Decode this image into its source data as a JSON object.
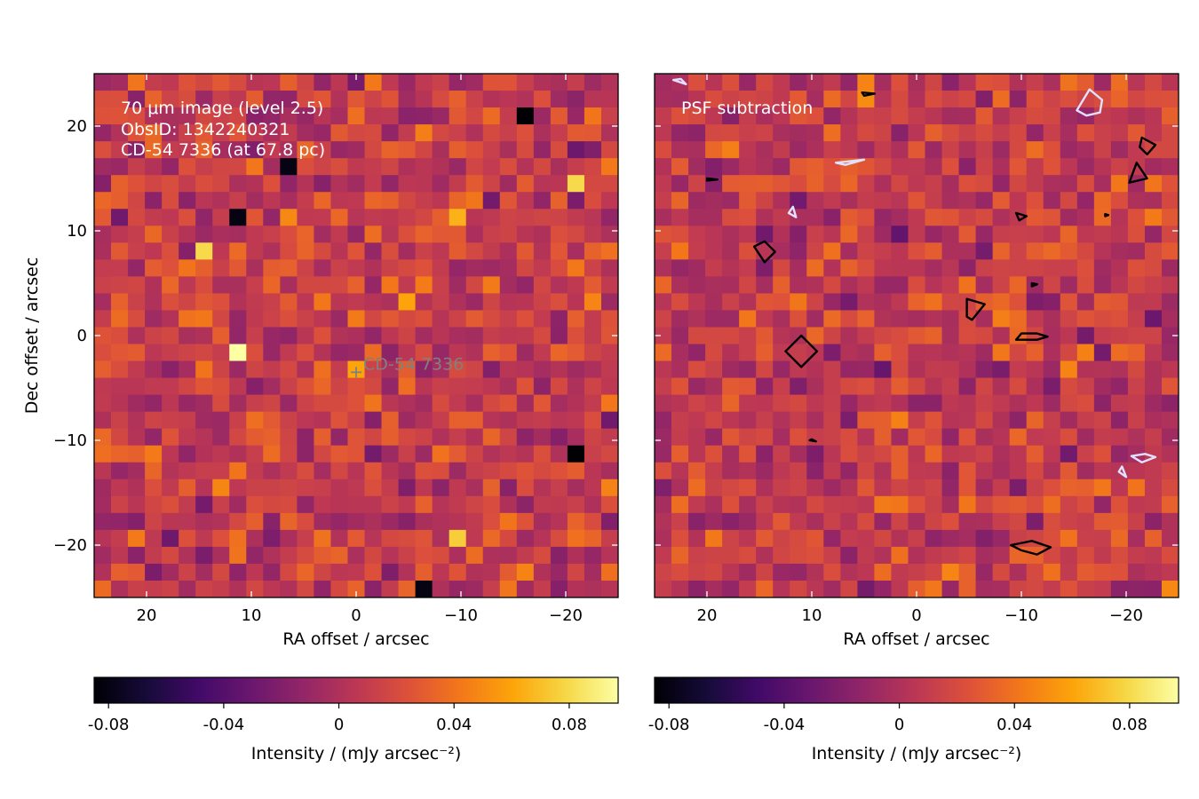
{
  "chart_data": [
    {
      "type": "heatmap",
      "panel": "left",
      "annotation_lines": [
        "70 μm image (level 2.5)",
        "ObsID: 1342240321",
        "CD-54 7336 (at 67.8 pc)"
      ],
      "xlabel": "RA offset / arcsec",
      "ylabel": "Dec offset / arcsec",
      "xlim": [
        25,
        -25
      ],
      "ylim": [
        -25,
        25
      ],
      "xticks": [
        20,
        10,
        0,
        -10,
        -20
      ],
      "xtick_labels": [
        "20",
        "10",
        "0",
        "−10",
        "−20"
      ],
      "yticks": [
        20,
        10,
        0,
        -10,
        -20
      ],
      "ytick_labels": [
        "20",
        "10",
        "0",
        "−10",
        "−20"
      ],
      "grid_size": [
        31,
        31
      ],
      "pixel_size_arcsec": 1.6,
      "target": {
        "label": "CD-54  7336",
        "x": 0,
        "y": -3.5,
        "marker": "+"
      },
      "colorbar": {
        "cmap": "inferno",
        "vmin": -0.085,
        "vmax": 0.097,
        "ticks": [
          -0.08,
          -0.04,
          0,
          0.04,
          0.08
        ],
        "tick_labels": [
          "-0.08",
          "-0.04",
          "0",
          "0.04",
          "0.08"
        ],
        "label": "Intensity / (mJy arcsec⁻²)"
      },
      "features": [
        {
          "x": 11,
          "y": -1.5,
          "value": 0.097
        },
        {
          "x": 14.5,
          "y": 8,
          "value": 0.08
        },
        {
          "x": 0,
          "y": -3.5,
          "value": 0.06
        },
        {
          "x": -5,
          "y": 2.5,
          "value": 0.06
        },
        {
          "x": -10,
          "y": 11.5,
          "value": 0.065
        },
        {
          "x": -21,
          "y": 15,
          "value": 0.08
        },
        {
          "x": -10,
          "y": -19.5,
          "value": 0.075
        },
        {
          "x": -16,
          "y": 21.5,
          "value": -0.085
        },
        {
          "x": -21,
          "y": -11,
          "value": -0.085
        },
        {
          "x": 11,
          "y": 11.5,
          "value": -0.08
        },
        {
          "x": 6,
          "y": 16,
          "value": -0.08
        },
        {
          "x": -6,
          "y": -24,
          "value": -0.08
        }
      ]
    },
    {
      "type": "heatmap",
      "panel": "right",
      "annotation_lines": [
        "PSF subtraction"
      ],
      "xlabel": "RA offset / arcsec",
      "ylabel": "",
      "xlim": [
        25,
        -25
      ],
      "ylim": [
        -25,
        25
      ],
      "xticks": [
        20,
        10,
        0,
        -10,
        -20
      ],
      "xtick_labels": [
        "20",
        "10",
        "0",
        "−10",
        "−20"
      ],
      "yticks": [
        20,
        10,
        0,
        -10,
        -20
      ],
      "ytick_labels": [],
      "grid_size": [
        31,
        31
      ],
      "pixel_size_arcsec": 1.6,
      "colorbar": {
        "cmap": "inferno",
        "vmin": -0.085,
        "vmax": 0.097,
        "ticks": [
          -0.08,
          -0.04,
          0,
          0.04,
          0.08
        ],
        "tick_labels": [
          "-0.08",
          "-0.04",
          "0",
          "0.04",
          "0.08"
        ],
        "label": "Intensity / (mJy arcsec⁻²)"
      },
      "contours": [
        {
          "color": "#000000",
          "points": [
            [
              12.5,
              -1.5
            ],
            [
              11,
              0
            ],
            [
              9.5,
              -1.5
            ],
            [
              11,
              -3
            ]
          ]
        },
        {
          "color": "#000000",
          "points": [
            [
              15.5,
              8.5
            ],
            [
              14.5,
              9
            ],
            [
              13.5,
              8
            ],
            [
              14.5,
              7
            ]
          ]
        },
        {
          "color": "#000000",
          "points": [
            [
              -10,
              0.2
            ],
            [
              -11.5,
              0.2
            ],
            [
              -12.5,
              -0.1
            ],
            [
              -11.5,
              -0.4
            ],
            [
              -9.5,
              -0.4
            ]
          ]
        },
        {
          "color": "#000000",
          "points": [
            [
              -4.8,
              3.5
            ],
            [
              -6.5,
              3
            ],
            [
              -5.3,
              1.5
            ],
            [
              -4.8,
              1.8
            ]
          ]
        },
        {
          "color": "#000000",
          "points": [
            [
              -9,
              -20
            ],
            [
              -11,
              -19.6
            ],
            [
              -12.8,
              -20.2
            ],
            [
              -11.5,
              -20.9
            ],
            [
              -10,
              -20.5
            ]
          ]
        },
        {
          "color": "#000000",
          "points": [
            [
              -21.5,
              18.9
            ],
            [
              -22.8,
              18.2
            ],
            [
              -22,
              17.3
            ],
            [
              -21.3,
              18
            ]
          ]
        },
        {
          "color": "#000000",
          "points": [
            [
              -21,
              16.5
            ],
            [
              -22,
              15
            ],
            [
              -20.3,
              14.6
            ]
          ]
        },
        {
          "color": "#000000",
          "points": [
            [
              -9.5,
              11.7
            ],
            [
              -10.5,
              11.4
            ],
            [
              -9.8,
              11
            ]
          ]
        },
        {
          "color": "#000000",
          "points": [
            [
              -11,
              5
            ],
            [
              -11.5,
              4.9
            ],
            [
              -11,
              4.7
            ]
          ]
        },
        {
          "color": "#000000",
          "points": [
            [
              -18,
              11.6
            ],
            [
              -18.3,
              11.5
            ],
            [
              -18,
              11.4
            ]
          ]
        },
        {
          "color": "#000000",
          "points": [
            [
              5.2,
              23.2
            ],
            [
              4,
              23.1
            ],
            [
              5,
              22.9
            ]
          ]
        },
        {
          "color": "#000000",
          "points": [
            [
              20,
              15
            ],
            [
              19,
              14.9
            ],
            [
              20,
              14.8
            ]
          ]
        },
        {
          "color": "#000000",
          "points": [
            [
              10.2,
              -10
            ],
            [
              9.6,
              -10.1
            ],
            [
              10,
              -9.9
            ]
          ]
        },
        {
          "color": "#e0e0ff",
          "points": [
            [
              -16.5,
              23.5
            ],
            [
              -17.7,
              22.5
            ],
            [
              -17.5,
              21.3
            ],
            [
              -16.2,
              21
            ],
            [
              -15.3,
              21.5
            ]
          ]
        },
        {
          "color": "#e0e0ff",
          "points": [
            [
              6.8,
              16.3
            ],
            [
              5,
              16.8
            ],
            [
              7.7,
              16.5
            ]
          ]
        },
        {
          "color": "#e0e0ff",
          "points": [
            [
              11.8,
              12.3
            ],
            [
              11.5,
              11.3
            ],
            [
              12.2,
              11.7
            ]
          ]
        },
        {
          "color": "#e0e0ff",
          "points": [
            [
              -20.5,
              -11.5
            ],
            [
              -21.8,
              -11.3
            ],
            [
              -22.8,
              -11.6
            ],
            [
              -21.5,
              -12.1
            ]
          ]
        },
        {
          "color": "#e0e0ff",
          "points": [
            [
              -19.6,
              -12.5
            ],
            [
              -20,
              -13.5
            ],
            [
              -19.3,
              -13
            ]
          ]
        },
        {
          "color": "#e0e0ff",
          "points": [
            [
              22.5,
              24.5
            ],
            [
              22,
              24
            ],
            [
              23.2,
              24.4
            ]
          ]
        }
      ]
    }
  ]
}
